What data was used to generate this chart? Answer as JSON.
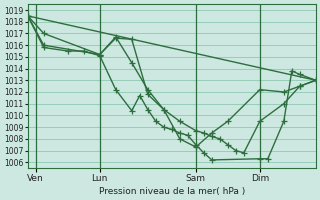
{
  "bg_color": "#cce8e0",
  "grid_color": "#99ccbb",
  "line_color": "#2d6e3e",
  "ylabel": "Pression niveau de la mer( hPa )",
  "ylim": [
    1005.5,
    1019.5
  ],
  "yticks": [
    1006,
    1007,
    1008,
    1009,
    1010,
    1011,
    1012,
    1013,
    1014,
    1015,
    1016,
    1017,
    1018,
    1019
  ],
  "xlim": [
    0,
    144
  ],
  "xtick_labels": [
    "Ven",
    "Lun",
    "Sam",
    "Dim"
  ],
  "xtick_positions": [
    4,
    36,
    84,
    116
  ],
  "vlines": [
    4,
    36,
    84,
    116
  ],
  "lines": [
    {
      "x": [
        0,
        144
      ],
      "y": [
        1018.5,
        1013.0
      ],
      "lw": 1.0,
      "marker": false,
      "ms": 0
    },
    {
      "x": [
        0,
        8,
        36,
        44,
        52,
        60,
        68,
        76,
        84,
        92,
        100,
        116,
        128,
        136,
        144
      ],
      "y": [
        1018.5,
        1017.0,
        1015.2,
        1016.6,
        1016.5,
        1011.8,
        1010.5,
        1008.0,
        1007.3,
        1008.5,
        1009.5,
        1012.2,
        1012.0,
        1012.5,
        1013.0
      ],
      "lw": 1.0,
      "marker": true,
      "ms": 4
    },
    {
      "x": [
        0,
        8,
        36,
        44,
        52,
        60,
        68,
        76,
        84,
        88,
        92,
        96,
        100,
        104,
        108,
        116,
        128,
        136,
        144
      ],
      "y": [
        1018.5,
        1016.0,
        1015.2,
        1016.7,
        1014.5,
        1012.2,
        1010.5,
        1009.5,
        1008.7,
        1008.5,
        1008.2,
        1008.0,
        1007.5,
        1007.0,
        1006.8,
        1009.5,
        1011.0,
        1012.5,
        1013.0
      ],
      "lw": 1.0,
      "marker": true,
      "ms": 4
    },
    {
      "x": [
        0,
        8,
        20,
        28,
        36,
        44,
        52,
        56,
        60,
        64,
        68,
        72,
        76,
        80,
        84,
        88,
        92,
        116,
        120,
        128,
        132,
        136,
        144
      ],
      "y": [
        1018.5,
        1015.8,
        1015.5,
        1015.5,
        1015.1,
        1012.2,
        1010.4,
        1011.7,
        1010.5,
        1009.5,
        1009.0,
        1008.8,
        1008.5,
        1008.3,
        1007.5,
        1006.8,
        1006.2,
        1006.3,
        1006.3,
        1009.5,
        1013.8,
        1013.5,
        1013.0
      ],
      "lw": 1.0,
      "marker": true,
      "ms": 4
    }
  ]
}
